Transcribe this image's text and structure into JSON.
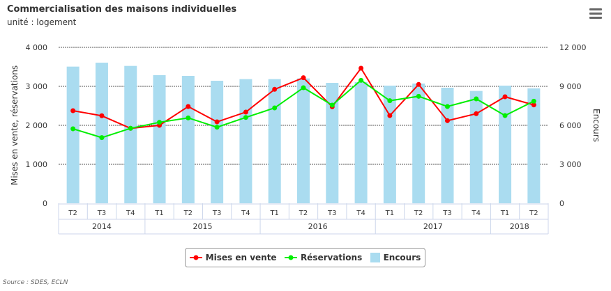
{
  "title": "Commercialisation des maisons individuelles",
  "subtitle": "unité : logement",
  "source": "Source : SDES, ECLN",
  "chart_data": {
    "type": "bar+line",
    "categories": [
      "T2",
      "T3",
      "T4",
      "T1",
      "T2",
      "T3",
      "T4",
      "T1",
      "T2",
      "T3",
      "T4",
      "T1",
      "T2",
      "T3",
      "T4",
      "T1",
      "T2"
    ],
    "years": [
      {
        "label": "2014",
        "span": 3
      },
      {
        "label": "2015",
        "span": 4
      },
      {
        "label": "2016",
        "span": 4
      },
      {
        "label": "2017",
        "span": 4
      },
      {
        "label": "2018",
        "span": 2
      }
    ],
    "ylabel": "Mises en vente, réservations",
    "y2label": "Encours",
    "ylim": [
      0,
      4000
    ],
    "yticks": [
      "0",
      "1 000",
      "2 000",
      "3 000",
      "4 000"
    ],
    "y2lim": [
      0,
      12000
    ],
    "y2ticks": [
      "0",
      "3 000",
      "6 000",
      "9 000",
      "12 000"
    ],
    "series": [
      {
        "name": "Mises en vente",
        "type": "line",
        "axis": "left",
        "color": "#ff0000",
        "values": [
          2375,
          2245,
          1923,
          2000,
          2482,
          2089,
          2339,
          2923,
          3220,
          2476,
          3464,
          2250,
          3048,
          2119,
          2298,
          2732,
          2523
        ]
      },
      {
        "name": "Réservations",
        "type": "line",
        "axis": "left",
        "color": "#00ee00",
        "values": [
          1911,
          1685,
          1923,
          2077,
          2190,
          1952,
          2202,
          2446,
          2964,
          2518,
          3155,
          2631,
          2744,
          2482,
          2679,
          2250,
          2619
        ]
      },
      {
        "name": "Encours",
        "type": "bar",
        "axis": "right",
        "color": "#aadcf0",
        "values": [
          10518,
          10821,
          10571,
          9857,
          9804,
          9429,
          9554,
          9554,
          9607,
          9268,
          9321,
          9054,
          9214,
          8893,
          8643,
          9054,
          8839
        ]
      }
    ],
    "legend": "bottom-center"
  }
}
